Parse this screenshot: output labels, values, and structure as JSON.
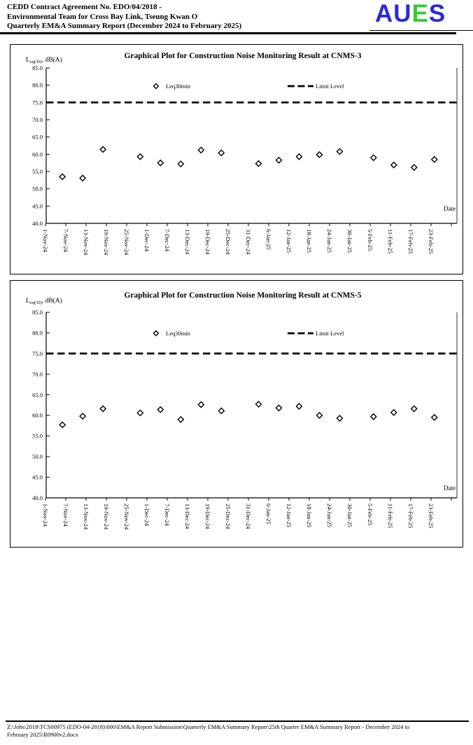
{
  "header": {
    "line1": "CEDD Contract Agreement No. EDO/04/2018 -",
    "line2": "Environmental Team for Cross Bay Link, Tseung Kwan O",
    "line3": "Quarterly EM&A Summary Report (December 2024 to February 2025)",
    "logo_letters": [
      {
        "char": "A",
        "color": "#2b2bd8"
      },
      {
        "char": "U",
        "color": "#2b2bd8"
      },
      {
        "char": "E",
        "color": "#33cc33"
      },
      {
        "char": "S",
        "color": "#2b2bd8"
      }
    ]
  },
  "chart_data": [
    {
      "type": "scatter",
      "title": "Graphical Plot for Construction Noise Monitoring Result at CNMS-3",
      "y_axis_title": {
        "main": "L",
        "sub": "eq(30)",
        "rest": ", dB(A)"
      },
      "x_axis_title": "Date",
      "ylim": [
        40.0,
        85.0
      ],
      "ytick_labels": [
        "85.0",
        "80.0",
        "75.0",
        "70.0",
        "65.0",
        "60.0",
        "55.0",
        "50.0",
        "45.0",
        "40.0"
      ],
      "categories": [
        "1-Nov-24",
        "7-Nov-24",
        "13-Nov-24",
        "19-Nov-24",
        "25-Nov-24",
        "1-Dec-24",
        "7-Dec-24",
        "13-Dec-24",
        "19-Dec-24",
        "25-Dec-24",
        "31-Dec-24",
        "6-Jan-25",
        "12-Jan-25",
        "18-Jan-25",
        "24-Jan-25",
        "30-Jan-25",
        "5-Feb-25",
        "11-Feb-25",
        "17-Feb-25",
        "23-Feb-25"
      ],
      "tick_interval_days": 6,
      "grid": false,
      "legend_position": "inside-top",
      "legend": [
        {
          "label": "Leq30min",
          "marker": "diamond"
        },
        {
          "label": "Limit Level",
          "marker": "dashed-line"
        }
      ],
      "series": [
        {
          "name": "Leq30min",
          "marker": "diamond",
          "points": [
            {
              "day": 5,
              "value": 53.5
            },
            {
              "day": 11,
              "value": 53.1
            },
            {
              "day": 17,
              "value": 61.4
            },
            {
              "day": 28,
              "value": 59.3
            },
            {
              "day": 34,
              "value": 57.5
            },
            {
              "day": 40,
              "value": 57.2
            },
            {
              "day": 46,
              "value": 61.2
            },
            {
              "day": 52,
              "value": 60.4
            },
            {
              "day": 63,
              "value": 57.3
            },
            {
              "day": 69,
              "value": 58.3
            },
            {
              "day": 75,
              "value": 59.3
            },
            {
              "day": 81,
              "value": 59.9
            },
            {
              "day": 87,
              "value": 60.8
            },
            {
              "day": 97,
              "value": 59.0
            },
            {
              "day": 103,
              "value": 56.9
            },
            {
              "day": 109,
              "value": 56.2
            },
            {
              "day": 115,
              "value": 58.5
            }
          ]
        },
        {
          "name": "Limit Level",
          "style": "dashed",
          "value": 75.0
        }
      ]
    },
    {
      "type": "scatter",
      "title": "Graphical Plot for Construction Noise Monitoring Result at CNMS-5",
      "y_axis_title": {
        "main": "L",
        "sub": "eq(30)",
        "rest": ", dB(A)"
      },
      "x_axis_title": "Date",
      "ylim": [
        40.0,
        85.0
      ],
      "ytick_labels": [
        "85.0",
        "80.0",
        "75.0",
        "70.0",
        "65.0",
        "60.0",
        "55.0",
        "50.0",
        "45.0",
        "40.0"
      ],
      "categories": [
        "1-Nov-24",
        "7-Nov-24",
        "13-Nov-24",
        "19-Nov-24",
        "25-Nov-24",
        "1-Dec-24",
        "7-Dec-24",
        "13-Dec-24",
        "19-Dec-24",
        "25-Dec-24",
        "31-Dec-24",
        "6-Jan-25",
        "12-Jan-25",
        "18-Jan-25",
        "24-Jan-25",
        "30-Jan-25",
        "5-Feb-25",
        "11-Feb-25",
        "17-Feb-25",
        "23-Feb-25"
      ],
      "tick_interval_days": 6,
      "grid": false,
      "legend_position": "inside-top",
      "legend": [
        {
          "label": "Leq30min",
          "marker": "diamond"
        },
        {
          "label": "Limit Level",
          "marker": "dashed-line"
        }
      ],
      "series": [
        {
          "name": "Leq30min",
          "marker": "diamond",
          "points": [
            {
              "day": 5,
              "value": 57.7
            },
            {
              "day": 11,
              "value": 59.8
            },
            {
              "day": 17,
              "value": 61.6
            },
            {
              "day": 28,
              "value": 60.6
            },
            {
              "day": 34,
              "value": 61.4
            },
            {
              "day": 40,
              "value": 59.0
            },
            {
              "day": 46,
              "value": 62.6
            },
            {
              "day": 52,
              "value": 61.1
            },
            {
              "day": 63,
              "value": 62.7
            },
            {
              "day": 69,
              "value": 61.8
            },
            {
              "day": 75,
              "value": 62.2
            },
            {
              "day": 81,
              "value": 60.0
            },
            {
              "day": 87,
              "value": 59.3
            },
            {
              "day": 97,
              "value": 59.7
            },
            {
              "day": 103,
              "value": 60.7
            },
            {
              "day": 109,
              "value": 61.6
            },
            {
              "day": 115,
              "value": 59.5
            }
          ]
        },
        {
          "name": "Limit Level",
          "style": "dashed",
          "value": 75.0
        }
      ]
    }
  ],
  "footer": {
    "path_line1": "Z:\\Jobs\\2018\\TCS00975 (EDO-04-2018)\\600\\EM&A Report Submission\\Quarterly EM&A Summary Report\\25th Quarter EM&A Summary Report - December 2024 to",
    "path_line2": "February 2025\\R0900v2.docx"
  }
}
